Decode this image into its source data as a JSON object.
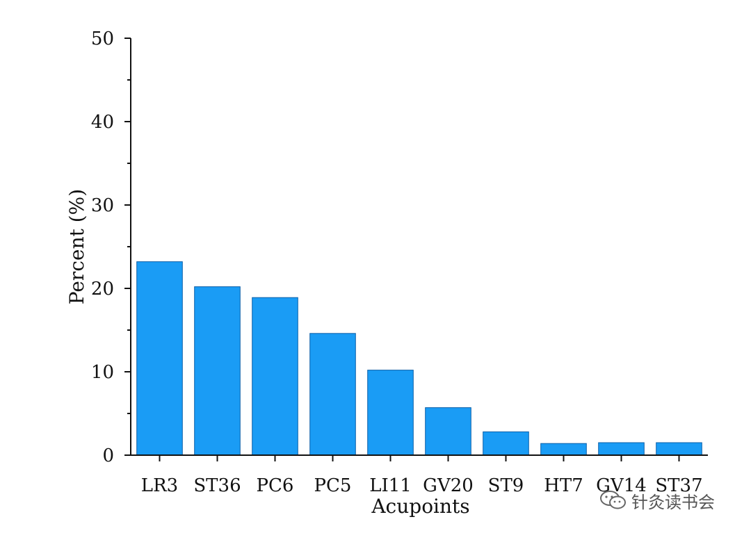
{
  "chart_data": {
    "type": "bar",
    "categories": [
      "LR3",
      "ST36",
      "PC6",
      "PC5",
      "LI11",
      "GV20",
      "ST9",
      "HT7",
      "GV14",
      "ST37"
    ],
    "values": [
      23.2,
      20.2,
      18.9,
      14.6,
      10.2,
      5.7,
      2.8,
      1.4,
      1.5,
      1.5
    ],
    "title": "",
    "xlabel": "Acupoints",
    "ylabel": "Percent (%)",
    "ylim": [
      0,
      50
    ],
    "yticks": [
      0,
      10,
      20,
      30,
      40,
      50
    ],
    "grid": false,
    "bar_color": "#1a9cf5"
  },
  "watermark": {
    "icon": "wechat-icon",
    "text": "针灸读书会"
  }
}
